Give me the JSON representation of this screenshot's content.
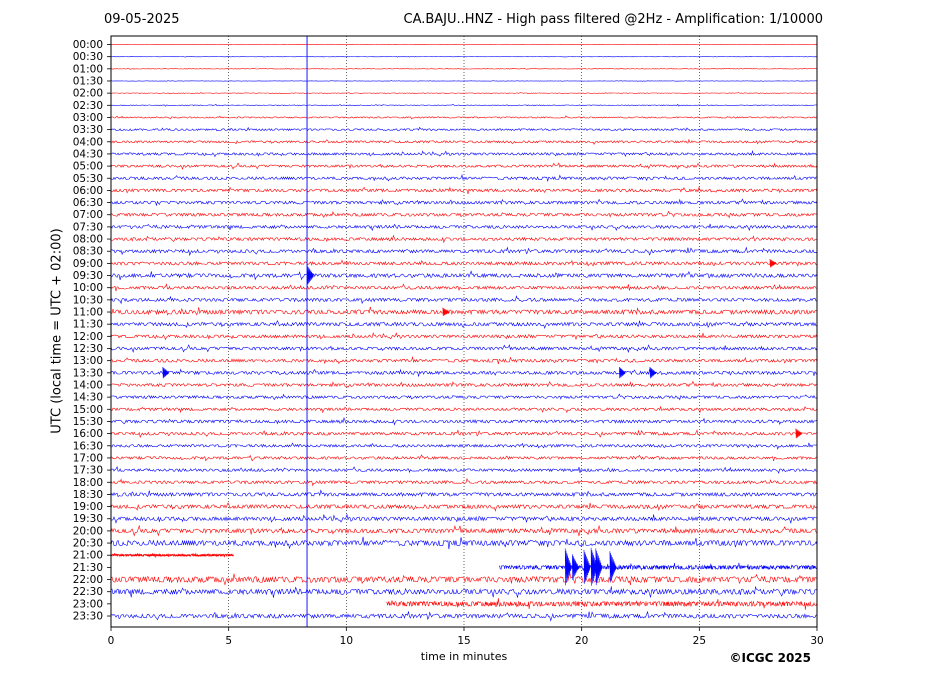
{
  "header": {
    "date": "09-05-2025",
    "title": "CA.BAJU..HNZ - High pass filtered @2Hz - Amplification: 1/10000"
  },
  "footer": {
    "copyright": "©ICGC 2025"
  },
  "chart_data": {
    "type": "line",
    "title": "CA.BAJU..HNZ - High pass filtered @2Hz - Amplification: 1/10000",
    "xlabel": "time in minutes",
    "ylabel": "UTC (local time = UTC + 02:00)",
    "xlim": [
      0,
      30
    ],
    "xticks": [
      0,
      5,
      10,
      15,
      20,
      25,
      30
    ],
    "vertical_grid": [
      5,
      10,
      15,
      20,
      25
    ],
    "marker_line_minute": 8.33,
    "row_colors": [
      "#ff0000",
      "#0000ff"
    ],
    "rows": [
      "00:00",
      "00:30",
      "01:00",
      "01:30",
      "02:00",
      "02:30",
      "03:00",
      "03:30",
      "04:00",
      "04:30",
      "05:00",
      "05:30",
      "06:00",
      "06:30",
      "07:00",
      "07:30",
      "08:00",
      "08:30",
      "09:00",
      "09:30",
      "10:00",
      "10:30",
      "11:00",
      "11:30",
      "12:00",
      "12:30",
      "13:00",
      "13:30",
      "14:00",
      "14:30",
      "15:00",
      "15:30",
      "16:00",
      "16:30",
      "17:00",
      "17:30",
      "18:00",
      "18:30",
      "19:00",
      "19:30",
      "20:00",
      "20:30",
      "21:00",
      "21:30",
      "22:00",
      "22:30",
      "23:00",
      "23:30"
    ],
    "noise_level": [
      0.1,
      0.15,
      0.15,
      0.15,
      0.2,
      0.3,
      0.5,
      0.7,
      0.8,
      0.9,
      0.9,
      1.0,
      1.1,
      1.1,
      1.1,
      1.1,
      1.1,
      1.2,
      1.2,
      1.4,
      1.1,
      1.2,
      1.6,
      1.3,
      1.1,
      1.1,
      1.1,
      1.2,
      1.1,
      1.0,
      1.0,
      1.1,
      1.1,
      1.0,
      1.0,
      1.0,
      1.1,
      1.3,
      1.4,
      1.4,
      1.6,
      2.0,
      0.8,
      1.5,
      2.2,
      2.0,
      1.8,
      1.5
    ],
    "trace_end_minutes": {
      "21:00": 5.2
    },
    "trace_start_minutes": {
      "21:30": 16.5,
      "23:00": 11.7
    },
    "events": [
      {
        "row": "21:30",
        "minute": 19.3,
        "amplitude": 2.6
      },
      {
        "row": "21:30",
        "minute": 19.6,
        "amplitude": 1.8
      },
      {
        "row": "21:30",
        "minute": 20.1,
        "amplitude": 2.4
      },
      {
        "row": "21:30",
        "minute": 20.4,
        "amplitude": 2.7
      },
      {
        "row": "21:30",
        "minute": 20.6,
        "amplitude": 2.6
      },
      {
        "row": "21:30",
        "minute": 21.2,
        "amplitude": 2.2
      },
      {
        "row": "09:30",
        "minute": 8.35,
        "amplitude": 1.3
      },
      {
        "row": "13:30",
        "minute": 2.2,
        "amplitude": 0.8
      },
      {
        "row": "13:30",
        "minute": 21.6,
        "amplitude": 0.8
      },
      {
        "row": "13:30",
        "minute": 22.9,
        "amplitude": 0.8
      },
      {
        "row": "16:00",
        "minute": 29.1,
        "amplitude": 0.7
      },
      {
        "row": "11:00",
        "minute": 14.1,
        "amplitude": 0.6
      },
      {
        "row": "09:00",
        "minute": 28.0,
        "amplitude": 0.6
      }
    ]
  }
}
